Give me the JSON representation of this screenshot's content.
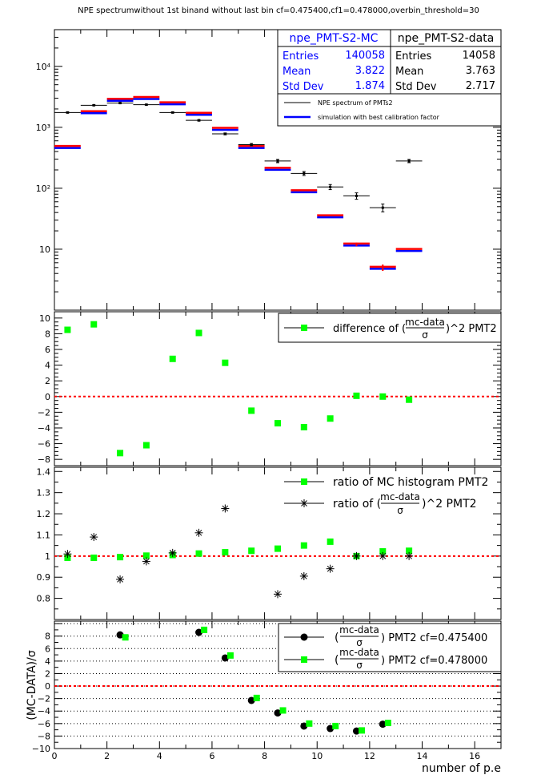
{
  "title": "NPE spectrumwithout 1st binand without last bin cf=0.475400,cf1=0.478000,overbin_threshold=30",
  "colors": {
    "data": "#000000",
    "mc_blue": "#0000ff",
    "mc_red": "#ff0000",
    "green": "#00ff00",
    "zero_line": "#ff0000"
  },
  "stats": {
    "mc": {
      "name": "npe_PMT-S2-MC",
      "entries_label": "Entries",
      "entries": "140058",
      "mean_label": "Mean",
      "mean": "3.822",
      "std_label": "Std Dev",
      "std": "1.874"
    },
    "data": {
      "name": "npe_PMT-S2-data",
      "entries_label": "Entries",
      "entries": "14058",
      "mean_label": "Mean",
      "mean": "3.763",
      "std_label": "Std Dev",
      "std": "2.717"
    }
  },
  "legend1": {
    "data": "NPE spectrum of PMTs2",
    "mc": "simulation with best calibration factor"
  },
  "legend2": {
    "pre": "difference of (",
    "num": "mc-data",
    "den": "σ",
    "post": ")^2 PMT2"
  },
  "legend3": {
    "first": "ratio of MC histogram  PMT2",
    "pre": "ratio of (",
    "num": "mc-data",
    "den": "σ",
    "post": ")^2 PMT2"
  },
  "legend4": {
    "num": "mc-data",
    "den": "σ",
    "first_post": ") PMT2 cf=0.475400",
    "second_post": ") PMT2 cf=0.478000",
    "open": "("
  },
  "panel4_ylabel": "(MC-DATA)/σ",
  "xlabel": "number of p.e",
  "chart_data": [
    {
      "type": "histogram",
      "yscale": "log",
      "ylim": [
        1,
        40000
      ],
      "xlim": [
        0,
        17
      ],
      "yticks": [
        10,
        100,
        1000,
        10000
      ],
      "yticklabels": [
        "10",
        "10²",
        "10³",
        "10⁴"
      ],
      "bins_x": [
        0.5,
        1.5,
        2.5,
        3.5,
        4.5,
        5.5,
        6.5,
        7.5,
        8.5,
        9.5,
        10.5,
        11.5,
        12.5,
        13.5
      ],
      "data": [
        1750,
        2300,
        2500,
        2350,
        1750,
        1300,
        780,
        520,
        280,
        175,
        105,
        75,
        48,
        280
      ],
      "data_err": [
        40,
        48,
        50,
        48,
        40,
        35,
        28,
        22,
        17,
        13,
        10,
        9,
        7,
        17
      ],
      "mc": [
        480,
        1780,
        2850,
        3050,
        2500,
        1680,
        950,
        480,
        210,
        90,
        35,
        12,
        5,
        9.8
      ],
      "mc_err": [
        0,
        0,
        0,
        0,
        0,
        0,
        0,
        0,
        0,
        0,
        0,
        0.8,
        0.6,
        0
      ]
    },
    {
      "type": "scatter",
      "ylim": [
        -8.8,
        10.8
      ],
      "yticks": [
        -8,
        -6,
        -4,
        -2,
        0,
        2,
        4,
        6,
        8,
        10
      ],
      "x": [
        0.5,
        1.5,
        2.5,
        3.5,
        4.5,
        5.5,
        6.5,
        7.5,
        8.5,
        9.5,
        10.5,
        11.5,
        12.5,
        13.5
      ],
      "y": [
        8.5,
        9.2,
        -7.2,
        -6.2,
        4.8,
        8.1,
        4.3,
        -1.8,
        -3.4,
        -3.9,
        -2.8,
        0.1,
        0.0,
        -0.4
      ]
    },
    {
      "type": "scatter",
      "ylim": [
        0.7,
        1.42
      ],
      "yticks": [
        0.8,
        0.9,
        1.0,
        1.1,
        1.2,
        1.3,
        1.4
      ],
      "yticklabels": [
        "0.8",
        "0.9",
        "1",
        "1.1",
        "1.2",
        "1.3",
        "1.4"
      ],
      "series": [
        {
          "marker": "green-square",
          "x": [
            0.5,
            1.5,
            2.5,
            3.5,
            4.5,
            5.5,
            6.5,
            7.5,
            8.5,
            9.5,
            10.5,
            11.5,
            12.5,
            13.5
          ],
          "y": [
            0.992,
            0.992,
            0.995,
            1.002,
            1.005,
            1.012,
            1.018,
            1.025,
            1.035,
            1.05,
            1.068,
            1.0,
            1.022,
            1.025
          ]
        },
        {
          "marker": "black-star",
          "x": [
            0.5,
            1.5,
            2.5,
            3.5,
            4.5,
            5.5,
            6.5,
            7.5,
            8.5,
            9.5,
            10.5,
            11.5,
            12.5,
            13.5
          ],
          "y": [
            1.01,
            1.09,
            0.89,
            0.975,
            1.015,
            1.11,
            1.225,
            null,
            0.82,
            0.905,
            0.94,
            1.0,
            1.0,
            1.0
          ]
        }
      ]
    },
    {
      "type": "scatter",
      "ylim": [
        -10,
        10.4
      ],
      "yticks": [
        -10,
        -8,
        -6,
        -4,
        -2,
        0,
        2,
        4,
        6,
        8
      ],
      "xticks": [
        0,
        2,
        4,
        6,
        8,
        10,
        12,
        14,
        16
      ],
      "series": [
        {
          "marker": "black-circle",
          "x": [
            2.5,
            5.5,
            6.5,
            7.5,
            8.5,
            9.5,
            10.5,
            11.5,
            12.5
          ],
          "y": [
            8.2,
            8.6,
            4.5,
            -2.3,
            -4.3,
            -6.4,
            -6.8,
            -7.2,
            -6.1
          ]
        },
        {
          "marker": "green-square",
          "x": [
            2.7,
            5.7,
            6.7,
            7.7,
            8.7,
            9.7,
            10.7,
            11.7,
            12.7
          ],
          "y": [
            7.8,
            9.0,
            4.9,
            -1.9,
            -3.9,
            -6.0,
            -6.4,
            -7.1,
            -5.9
          ]
        }
      ]
    }
  ]
}
